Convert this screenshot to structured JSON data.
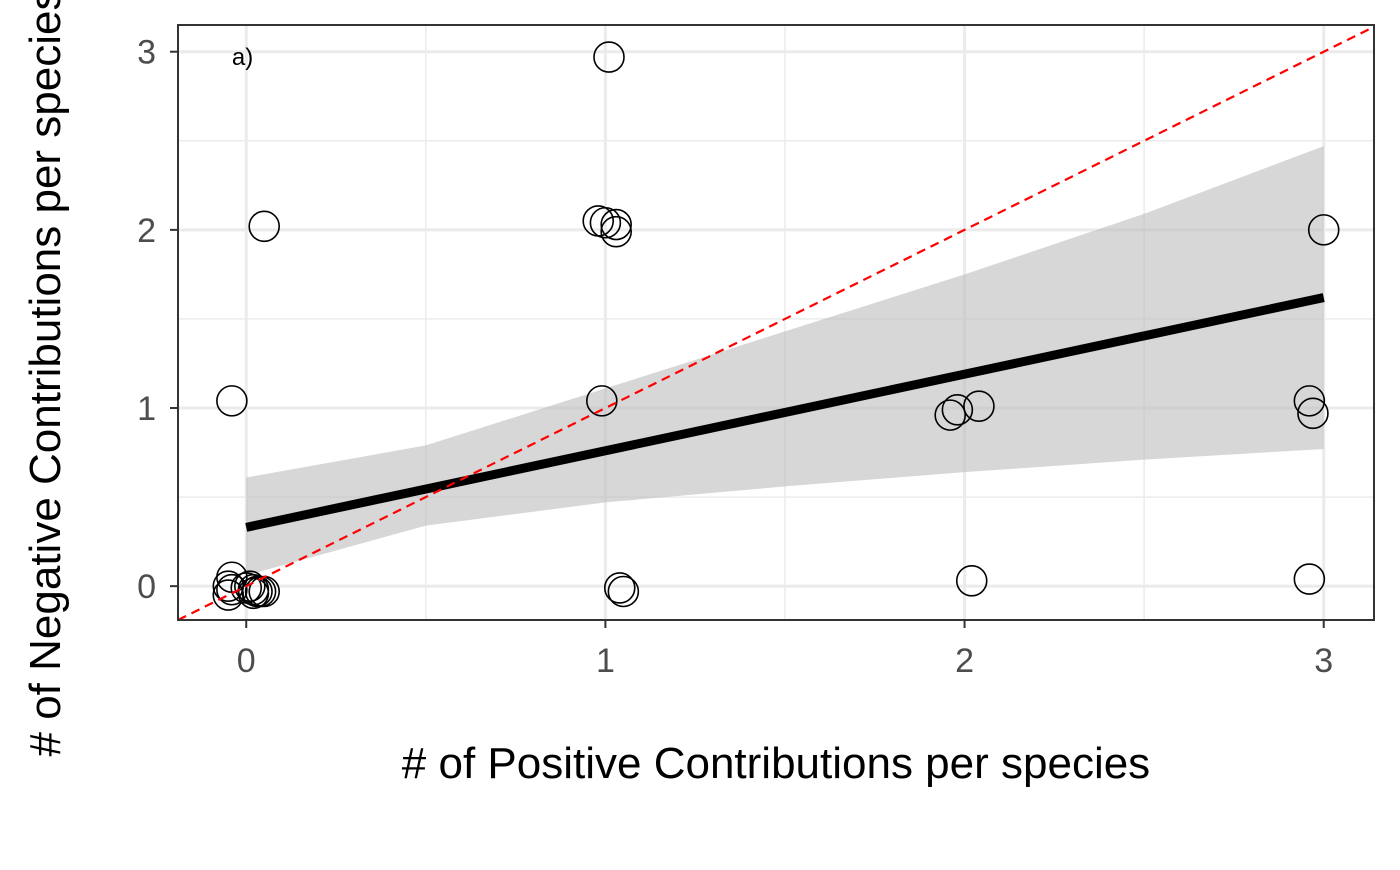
{
  "chart_data": {
    "type": "scatter",
    "annotation": "a)",
    "xlabel": "# of Positive Contributions per species",
    "ylabel": "# of Negative Contributions per species",
    "xlim": [
      -0.19,
      3.14
    ],
    "ylim": [
      -0.19,
      3.15
    ],
    "x_ticks": [
      0,
      1,
      2,
      3
    ],
    "y_ticks": [
      0,
      1,
      2,
      3
    ],
    "x_tick_labels": [
      "0",
      "1",
      "2",
      "3"
    ],
    "y_tick_labels": [
      "0",
      "1",
      "2",
      "3"
    ],
    "grid": true,
    "theme": "bw",
    "colors": {
      "points_stroke": "#000000",
      "fit_line": "#000000",
      "ribbon": "#bdbdbd",
      "reference_line": "#ff0000",
      "grid": "#ebebeb",
      "panel_border": "#333333"
    },
    "points": [
      {
        "x": 1.01,
        "y": 2.97
      },
      {
        "x": 0.05,
        "y": 2.02
      },
      {
        "x": 0.98,
        "y": 2.05
      },
      {
        "x": 1.0,
        "y": 2.04
      },
      {
        "x": 1.03,
        "y": 2.03
      },
      {
        "x": 1.03,
        "y": 1.99
      },
      {
        "x": 3.0,
        "y": 2.0
      },
      {
        "x": -0.04,
        "y": 1.04
      },
      {
        "x": 0.99,
        "y": 1.04
      },
      {
        "x": 1.96,
        "y": 0.96
      },
      {
        "x": 1.98,
        "y": 0.99
      },
      {
        "x": 2.04,
        "y": 1.01
      },
      {
        "x": 2.96,
        "y": 1.04
      },
      {
        "x": 2.97,
        "y": 0.97
      },
      {
        "x": -0.04,
        "y": 0.05
      },
      {
        "x": -0.05,
        "y": 0.0
      },
      {
        "x": -0.04,
        "y": -0.02
      },
      {
        "x": -0.05,
        "y": -0.05
      },
      {
        "x": 0.0,
        "y": -0.01
      },
      {
        "x": 0.02,
        "y": -0.02
      },
      {
        "x": 0.03,
        "y": -0.03
      },
      {
        "x": 0.01,
        "y": 0.0
      },
      {
        "x": 0.04,
        "y": -0.03
      },
      {
        "x": 0.02,
        "y": -0.04
      },
      {
        "x": 0.05,
        "y": -0.03
      },
      {
        "x": 1.04,
        "y": -0.01
      },
      {
        "x": 1.05,
        "y": -0.03
      },
      {
        "x": 2.02,
        "y": 0.03
      },
      {
        "x": 2.96,
        "y": 0.04
      }
    ],
    "fit_line": {
      "x": [
        0,
        3
      ],
      "y": [
        0.33,
        1.62
      ]
    },
    "confidence_band": {
      "x": [
        0,
        0.5,
        1,
        1.5,
        2,
        2.5,
        3
      ],
      "lower": [
        0.06,
        0.34,
        0.47,
        0.56,
        0.64,
        0.71,
        0.77
      ],
      "upper": [
        0.61,
        0.79,
        1.11,
        1.43,
        1.75,
        2.09,
        2.47
      ]
    },
    "reference_line": {
      "slope": 1,
      "intercept": 0,
      "style": "dashed"
    }
  }
}
